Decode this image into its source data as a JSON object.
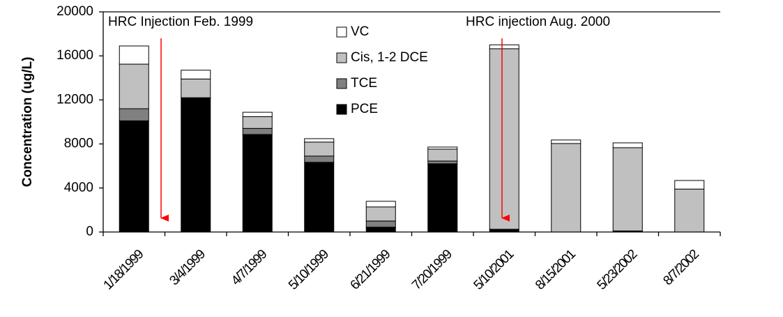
{
  "chart_data": {
    "type": "stacked_bar",
    "y_label": "Concentration (ug/L)",
    "categories": [
      "1/18/1999",
      "3/4/1999",
      "4/7/1999",
      "5/10/1999",
      "6/21/1999",
      "7/20/1999",
      "5/10/2001",
      "8/15/2001",
      "5/23/2002",
      "8/7/2002"
    ],
    "series": [
      {
        "name": "PCE",
        "color": "#000000",
        "values": [
          10100,
          12200,
          8860,
          6330,
          440,
          6200,
          250,
          0,
          100,
          0
        ]
      },
      {
        "name": "TCE",
        "color": "#808080",
        "values": [
          1100,
          0,
          550,
          570,
          560,
          250,
          0,
          0,
          0,
          0
        ]
      },
      {
        "name": "Cis, 1-2 DCE",
        "color": "#c0c0c0",
        "values": [
          4050,
          1700,
          1070,
          1270,
          1280,
          1080,
          16400,
          8040,
          7560,
          3900
        ]
      },
      {
        "name": "VC",
        "color": "#ffffff",
        "values": [
          1650,
          800,
          400,
          310,
          510,
          190,
          350,
          320,
          440,
          780
        ]
      }
    ],
    "annotations": [
      "HRC Injection Feb. 1999",
      "HRC injection Aug. 2000"
    ],
    "ylim": [
      0,
      20000
    ],
    "yticks": [
      0,
      4000,
      8000,
      12000,
      16000,
      20000
    ],
    "grid": false,
    "legend": "upper-left"
  }
}
